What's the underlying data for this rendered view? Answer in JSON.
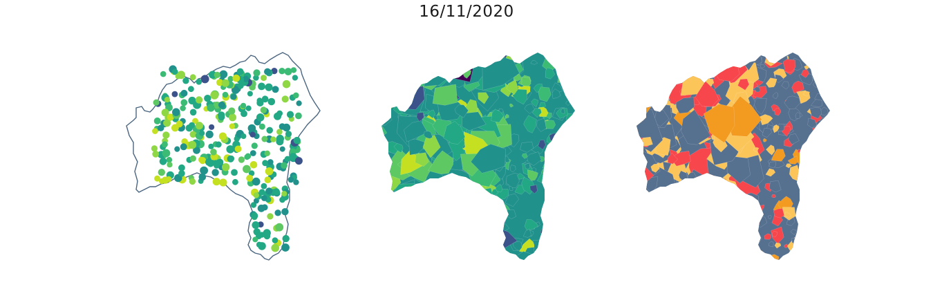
{
  "figure": {
    "title": "16/11/2020"
  },
  "panels": [
    {
      "kind": "points-on-outline",
      "name": "points"
    },
    {
      "kind": "choropleth",
      "name": "viridis"
    },
    {
      "kind": "categorical-choropleth",
      "name": "categories"
    }
  ],
  "colors": {
    "outline": "#4a6580",
    "viridis": [
      "#440154",
      "#3b528b",
      "#21918c",
      "#22a884",
      "#3cbb75",
      "#5ec962",
      "#8fd744",
      "#c5e021",
      "#fde725"
    ],
    "categories": [
      "#56708f",
      "#fbc55a",
      "#f7464c",
      "#f39a20"
    ]
  }
}
